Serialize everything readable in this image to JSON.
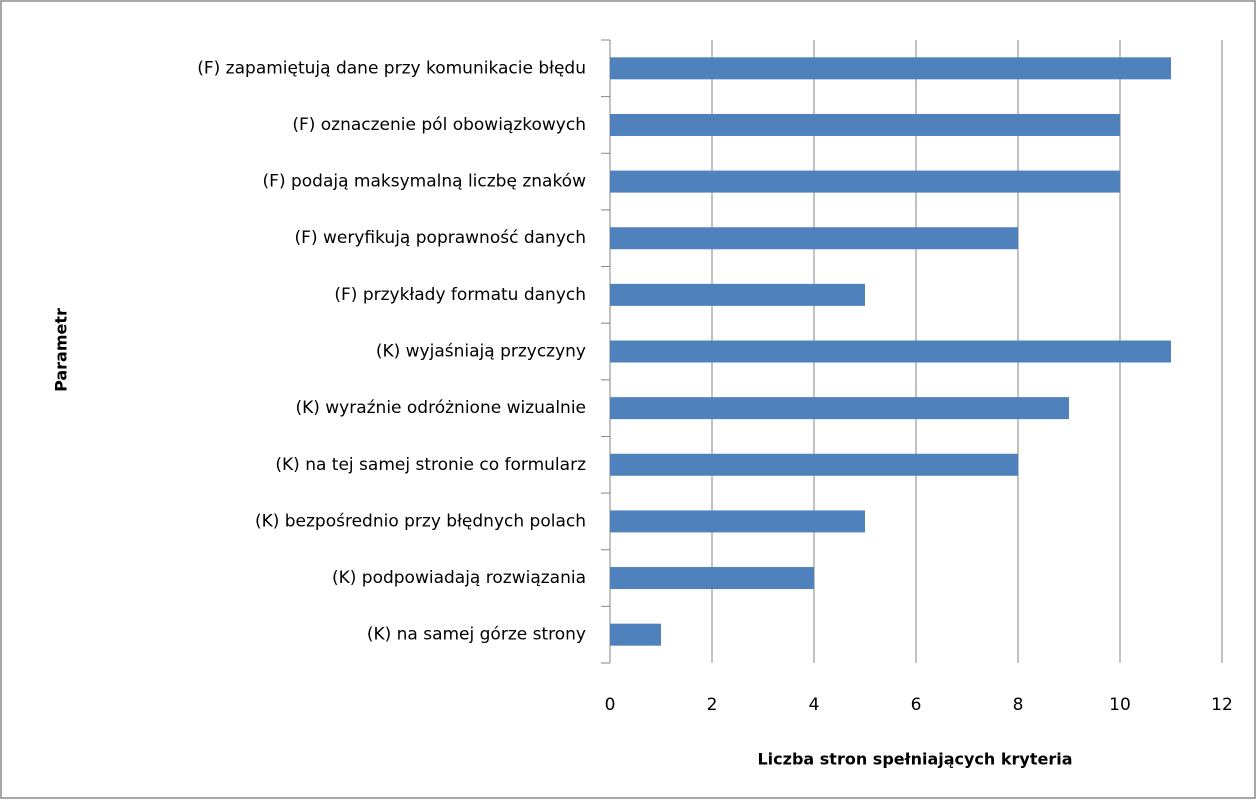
{
  "chart_data": {
    "type": "barh",
    "categories": [
      "(F) zapamiętują dane przy komunikacie błędu",
      "(F) oznaczenie pól obowiązkowych",
      "(F) podają maksymalną liczbę znaków",
      "(F) weryfikują poprawność danych",
      "(F) przykłady formatu danych",
      "(K) wyjaśniają przyczyny",
      "(K) wyraźnie odróżnione wizualnie",
      "(K) na tej samej stronie co formularz",
      "(K) bezpośrednio przy błędnych polach",
      "(K) podpowiadają rozwiązania",
      "(K) na samej górze strony"
    ],
    "values": [
      11,
      10,
      10,
      8,
      5,
      11,
      9,
      8,
      5,
      4,
      1
    ],
    "color": "#4f81bd",
    "xlim": [
      0,
      12
    ],
    "xticks": [
      0,
      2,
      4,
      6,
      8,
      10,
      12
    ],
    "grid": true,
    "xlabel": "Liczba stron spełniających  kryteria",
    "ylabel": "Parametr"
  }
}
